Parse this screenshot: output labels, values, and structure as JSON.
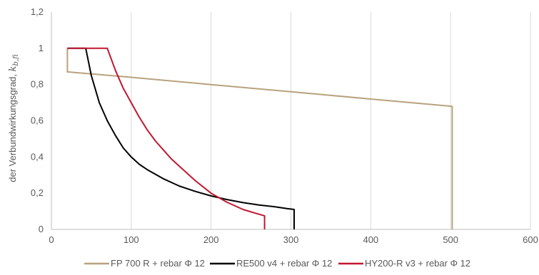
{
  "chart_data": {
    "type": "line",
    "title": "",
    "xlabel": "",
    "ylabel": "der Verbundwirkungsgrad,  k_b,fi",
    "ylabel_main": "der Verbundwirkungsgrad,  ",
    "ylabel_symbol": "k",
    "ylabel_subscript": "b,fi",
    "xlim": [
      0,
      600
    ],
    "ylim": [
      0,
      1.2
    ],
    "x_ticks": [
      0,
      100,
      200,
      300,
      400,
      500,
      600
    ],
    "y_ticks": [
      0,
      0.2,
      0.4,
      0.6,
      0.8,
      1,
      1.2
    ],
    "x_tick_labels": [
      "0",
      "100",
      "200",
      "300",
      "400",
      "500",
      "600"
    ],
    "y_tick_labels": [
      "0",
      "0,2",
      "0,4",
      "0,6",
      "0,8",
      "1",
      "1,2"
    ],
    "grid": "vertical",
    "legend_position": "bottom",
    "series": [
      {
        "name": "FP 700 R + rebar Φ 12",
        "color": "#b8a27e",
        "points": [
          [
            20,
            1.0
          ],
          [
            20,
            0.87
          ],
          [
            100,
            0.84
          ],
          [
            200,
            0.8
          ],
          [
            300,
            0.76
          ],
          [
            400,
            0.72
          ],
          [
            502,
            0.68
          ],
          [
            502,
            0.0
          ]
        ]
      },
      {
        "name": "RE500 v4 + rebar Φ 12",
        "color": "#000000",
        "points": [
          [
            20,
            1.0
          ],
          [
            43,
            1.0
          ],
          [
            50,
            0.85
          ],
          [
            60,
            0.7
          ],
          [
            70,
            0.6
          ],
          [
            80,
            0.52
          ],
          [
            90,
            0.45
          ],
          [
            100,
            0.4
          ],
          [
            110,
            0.36
          ],
          [
            120,
            0.33
          ],
          [
            140,
            0.28
          ],
          [
            160,
            0.24
          ],
          [
            180,
            0.21
          ],
          [
            200,
            0.185
          ],
          [
            220,
            0.165
          ],
          [
            240,
            0.148
          ],
          [
            260,
            0.135
          ],
          [
            280,
            0.125
          ],
          [
            295,
            0.115
          ],
          [
            304,
            0.11
          ],
          [
            304,
            0.0
          ]
        ]
      },
      {
        "name": "HY200-R v3 + rebar Φ 12",
        "color": "#c0182f",
        "points": [
          [
            20,
            1.0
          ],
          [
            70,
            1.0
          ],
          [
            80,
            0.88
          ],
          [
            90,
            0.78
          ],
          [
            100,
            0.7
          ],
          [
            110,
            0.62
          ],
          [
            120,
            0.55
          ],
          [
            130,
            0.49
          ],
          [
            140,
            0.44
          ],
          [
            150,
            0.39
          ],
          [
            160,
            0.35
          ],
          [
            180,
            0.27
          ],
          [
            200,
            0.2
          ],
          [
            220,
            0.15
          ],
          [
            240,
            0.11
          ],
          [
            255,
            0.09
          ],
          [
            267,
            0.075
          ],
          [
            267,
            0.0
          ]
        ]
      }
    ]
  }
}
